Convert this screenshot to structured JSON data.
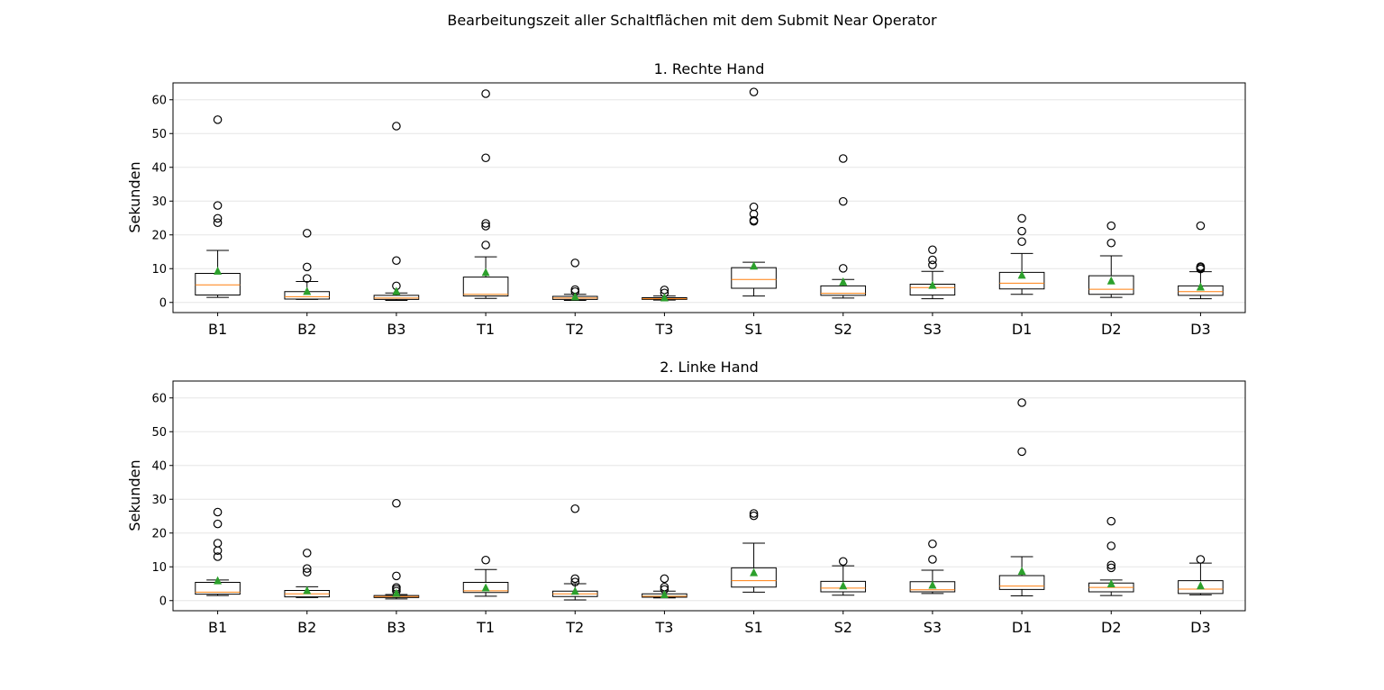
{
  "figure": {
    "suptitle": "Bearbeitungszeit aller Schaltflächen mit dem Submit Near Operator"
  },
  "style": {
    "box_edge": "#000000",
    "median": "#ff7f0e",
    "mean_marker": "#2ca02c",
    "grid": "#e6e6e6"
  },
  "chart_data": [
    {
      "type": "boxplot",
      "title": "1. Rechte Hand",
      "xlabel": "",
      "ylabel": "Sekunden",
      "ylim": [
        -3,
        65
      ],
      "yticks": [
        0,
        10,
        20,
        30,
        40,
        50,
        60
      ],
      "grid": "horizontal",
      "categories": [
        "B1",
        "B2",
        "B3",
        "T1",
        "T2",
        "T3",
        "S1",
        "S2",
        "S3",
        "D1",
        "D2",
        "D3"
      ],
      "boxes": [
        {
          "label": "B1",
          "whislo": 1.5,
          "q1": 2.2,
          "med": 5.2,
          "q3": 8.6,
          "whishi": 15.4,
          "mean": 9.3,
          "fliers": [
            23.6,
            24.9,
            28.7,
            54.1
          ]
        },
        {
          "label": "B2",
          "whislo": 0.9,
          "q1": 1.0,
          "med": 1.7,
          "q3": 3.2,
          "whishi": 6.2,
          "mean": 3.3,
          "fliers": [
            7.1,
            10.5,
            20.5
          ]
        },
        {
          "label": "B3",
          "whislo": 0.6,
          "q1": 0.9,
          "med": 1.3,
          "q3": 2.1,
          "whishi": 2.8,
          "mean": 3.3,
          "fliers": [
            4.9,
            12.4,
            52.2
          ]
        },
        {
          "label": "T1",
          "whislo": 1.2,
          "q1": 1.9,
          "med": 2.4,
          "q3": 7.5,
          "whishi": 13.5,
          "mean": 8.9,
          "fliers": [
            17.0,
            22.6,
            23.4,
            42.8,
            61.8
          ]
        },
        {
          "label": "T2",
          "whislo": 0.6,
          "q1": 0.9,
          "med": 1.3,
          "q3": 1.8,
          "whishi": 2.4,
          "mean": 1.7,
          "fliers": [
            3.2,
            3.8,
            11.7
          ]
        },
        {
          "label": "T3",
          "whislo": 0.7,
          "q1": 0.9,
          "med": 1.1,
          "q3": 1.4,
          "whishi": 1.9,
          "mean": 1.4,
          "fliers": [
            2.8,
            3.7
          ]
        },
        {
          "label": "S1",
          "whislo": 1.9,
          "q1": 4.2,
          "med": 6.8,
          "q3": 10.3,
          "whishi": 11.9,
          "mean": 10.8,
          "fliers": [
            24.0,
            24.3,
            26.2,
            28.3,
            62.3
          ]
        },
        {
          "label": "S2",
          "whislo": 1.3,
          "q1": 2.1,
          "med": 2.7,
          "q3": 4.9,
          "whishi": 6.8,
          "mean": 6.1,
          "fliers": [
            10.1,
            29.9,
            42.6
          ]
        },
        {
          "label": "S3",
          "whislo": 1.1,
          "q1": 2.2,
          "med": 4.4,
          "q3": 5.4,
          "whishi": 9.2,
          "mean": 5.1,
          "fliers": [
            11.1,
            12.6,
            15.6
          ]
        },
        {
          "label": "D1",
          "whislo": 2.4,
          "q1": 4.0,
          "med": 5.7,
          "q3": 8.9,
          "whishi": 14.5,
          "mean": 8.1,
          "fliers": [
            18.0,
            21.1,
            24.9
          ]
        },
        {
          "label": "D2",
          "whislo": 1.5,
          "q1": 2.4,
          "med": 3.9,
          "q3": 7.9,
          "whishi": 13.8,
          "mean": 6.4,
          "fliers": [
            17.6,
            22.7
          ]
        },
        {
          "label": "D3",
          "whislo": 1.1,
          "q1": 2.1,
          "med": 3.2,
          "q3": 4.9,
          "whishi": 9.1,
          "mean": 4.6,
          "fliers": [
            9.9,
            10.3,
            10.6,
            22.7
          ]
        }
      ]
    },
    {
      "type": "boxplot",
      "title": "2. Linke Hand",
      "xlabel": "",
      "ylabel": "Sekunden",
      "ylim": [
        -3,
        65
      ],
      "yticks": [
        0,
        10,
        20,
        30,
        40,
        50,
        60
      ],
      "grid": "horizontal",
      "categories": [
        "B1",
        "B2",
        "B3",
        "T1",
        "T2",
        "T3",
        "S1",
        "S2",
        "S3",
        "D1",
        "D2",
        "D3"
      ],
      "boxes": [
        {
          "label": "B1",
          "whislo": 1.5,
          "q1": 1.9,
          "med": 2.5,
          "q3": 5.4,
          "whishi": 6.1,
          "mean": 5.9,
          "fliers": [
            13.0,
            14.8,
            17.0,
            22.7,
            26.2
          ]
        },
        {
          "label": "B2",
          "whislo": 0.9,
          "q1": 1.1,
          "med": 2.0,
          "q3": 3.0,
          "whishi": 4.1,
          "mean": 3.0,
          "fliers": [
            8.4,
            9.5,
            14.1
          ]
        },
        {
          "label": "B3",
          "whislo": 0.5,
          "q1": 0.9,
          "med": 1.2,
          "q3": 1.5,
          "whishi": 1.8,
          "mean": 2.2,
          "fliers": [
            2.8,
            3.4,
            3.9,
            7.3,
            28.8
          ]
        },
        {
          "label": "T1",
          "whislo": 1.3,
          "q1": 2.4,
          "med": 2.9,
          "q3": 5.4,
          "whishi": 9.2,
          "mean": 3.8,
          "fliers": [
            12.0
          ]
        },
        {
          "label": "T2",
          "whislo": 0.2,
          "q1": 1.2,
          "med": 2.0,
          "q3": 2.8,
          "whishi": 5.0,
          "mean": 2.8,
          "fliers": [
            5.5,
            6.5,
            27.2
          ]
        },
        {
          "label": "T3",
          "whislo": 0.8,
          "q1": 1.0,
          "med": 1.3,
          "q3": 2.0,
          "whishi": 2.8,
          "mean": 1.8,
          "fliers": [
            3.3,
            4.0,
            6.5
          ]
        },
        {
          "label": "S1",
          "whislo": 2.5,
          "q1": 4.0,
          "med": 5.9,
          "q3": 9.7,
          "whishi": 17.0,
          "mean": 8.3,
          "fliers": [
            25.1,
            25.8
          ]
        },
        {
          "label": "S2",
          "whislo": 1.6,
          "q1": 2.6,
          "med": 3.7,
          "q3": 5.7,
          "whishi": 10.3,
          "mean": 4.4,
          "fliers": [
            11.6
          ]
        },
        {
          "label": "S3",
          "whislo": 2.1,
          "q1": 2.6,
          "med": 3.2,
          "q3": 5.6,
          "whishi": 9.0,
          "mean": 4.6,
          "fliers": [
            12.2,
            16.8
          ]
        },
        {
          "label": "D1",
          "whislo": 1.4,
          "q1": 3.3,
          "med": 4.3,
          "q3": 7.4,
          "whishi": 13.0,
          "mean": 8.7,
          "fliers": [
            44.1,
            58.6
          ]
        },
        {
          "label": "D2",
          "whislo": 1.5,
          "q1": 2.6,
          "med": 3.9,
          "q3": 5.2,
          "whishi": 6.1,
          "mean": 5.0,
          "fliers": [
            9.7,
            10.5,
            16.2,
            23.5
          ]
        },
        {
          "label": "D3",
          "whislo": 1.7,
          "q1": 2.1,
          "med": 3.4,
          "q3": 5.9,
          "whishi": 11.1,
          "mean": 4.4,
          "fliers": [
            12.2
          ]
        }
      ]
    }
  ]
}
